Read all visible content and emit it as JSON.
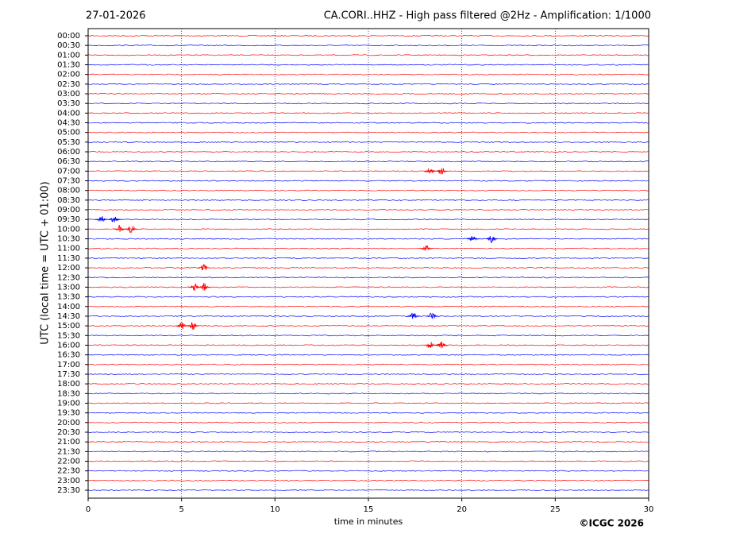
{
  "chart_data": {
    "type": "helicorder",
    "date": "27-01-2026",
    "title": "CA.CORI..HHZ - High pass filtered @2Hz - Amplification: 1/1000",
    "y_label": "UTC (local time = UTC + 01:00)",
    "x_label": "time in minutes",
    "copyright": "©ICGC 2026",
    "rows": [
      "00:00",
      "00:30",
      "01:00",
      "01:30",
      "02:00",
      "02:30",
      "03:00",
      "03:30",
      "04:00",
      "04:30",
      "05:00",
      "05:30",
      "06:00",
      "06:30",
      "07:00",
      "07:30",
      "08:00",
      "08:30",
      "09:00",
      "09:30",
      "10:00",
      "10:30",
      "11:00",
      "11:30",
      "12:00",
      "12:30",
      "13:00",
      "13:30",
      "14:00",
      "14:30",
      "15:00",
      "15:30",
      "16:00",
      "16:30",
      "17:00",
      "17:30",
      "18:00",
      "18:30",
      "19:00",
      "19:30",
      "20:00",
      "20:30",
      "21:00",
      "21:30",
      "22:00",
      "22:30",
      "23:00",
      "23:30"
    ],
    "colors": [
      "#ff0000",
      "#0000ff"
    ],
    "xlim": [
      0,
      30
    ],
    "xticks": [
      0,
      5,
      10,
      15,
      20,
      25,
      30
    ],
    "grid": true,
    "events": [
      {
        "row": "07:00",
        "x": 18.3
      },
      {
        "row": "07:00",
        "x": 18.9
      },
      {
        "row": "09:30",
        "x": 0.7
      },
      {
        "row": "09:30",
        "x": 1.4
      },
      {
        "row": "10:00",
        "x": 1.7
      },
      {
        "row": "10:00",
        "x": 2.3
      },
      {
        "row": "10:30",
        "x": 20.6
      },
      {
        "row": "10:30",
        "x": 21.6
      },
      {
        "row": "11:00",
        "x": 18.1
      },
      {
        "row": "12:00",
        "x": 6.2
      },
      {
        "row": "13:00",
        "x": 5.7
      },
      {
        "row": "13:00",
        "x": 6.2
      },
      {
        "row": "14:30",
        "x": 17.4
      },
      {
        "row": "14:30",
        "x": 18.4
      },
      {
        "row": "15:00",
        "x": 5.0
      },
      {
        "row": "15:00",
        "x": 5.6
      },
      {
        "row": "16:00",
        "x": 18.3
      },
      {
        "row": "16:00",
        "x": 18.9
      }
    ]
  }
}
